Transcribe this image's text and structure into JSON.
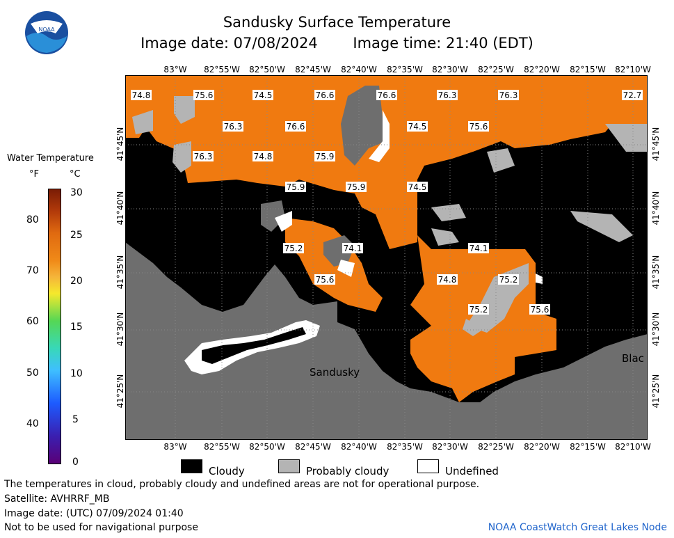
{
  "title": "Sandusky Surface Temperature",
  "image_date": "Image date: 07/08/2024",
  "image_time": "Image time: 21:40 (EDT)",
  "legend": {
    "title": "Water Temperature",
    "unit_f": "°F",
    "unit_c": "°C",
    "fahrenheit_ticks": [
      "80",
      "70",
      "60",
      "50",
      "40"
    ],
    "celsius_ticks": [
      "30",
      "25",
      "20",
      "15",
      "10",
      "5",
      "0"
    ]
  },
  "axes": {
    "longitudes": [
      "83°W",
      "82°55'W",
      "82°50'W",
      "82°45'W",
      "82°40'W",
      "82°35'W",
      "82°30'W",
      "82°25'W",
      "82°20'W",
      "82°15'W",
      "82°10'W"
    ],
    "latitudes": [
      "41°45'N",
      "41°40'N",
      "41°35'N",
      "41°30'N",
      "41°25'N"
    ]
  },
  "map": {
    "place_labels": [
      "Sandusky",
      "Blac"
    ],
    "temperature_labels": [
      "74.8",
      "75.6",
      "74.5",
      "76.6",
      "76.6",
      "76.3",
      "76.3",
      "72.7",
      "76.3",
      "76.6",
      "74.5",
      "75.6",
      "76.3",
      "74.8",
      "75.9",
      "75.9",
      "75.9",
      "74.5",
      "75.2",
      "74.1",
      "74.1",
      "75.6",
      "74.8",
      "75.2",
      "75.2",
      "75.6"
    ],
    "colors": {
      "water_warm": "#f07a10",
      "cloudy": "#000000",
      "probably_cloudy": "#b4b4b4",
      "land": "#6e6e6e",
      "undefined": "#ffffff"
    }
  },
  "key": {
    "cloudy": "Cloudy",
    "probably_cloudy": "Probably cloudy",
    "undefined": "Undefined"
  },
  "notes": {
    "disclaimer": "The temperatures in cloud, probably cloudy and undefined areas are not for operational purpose.",
    "satellite": "Satellite: AVHRRF_MB",
    "utc_date": "Image date: (UTC) 07/09/2024  01:40",
    "navigation": "Not to be used for navigational purpose",
    "credit": "NOAA CoastWatch Great Lakes Node"
  }
}
